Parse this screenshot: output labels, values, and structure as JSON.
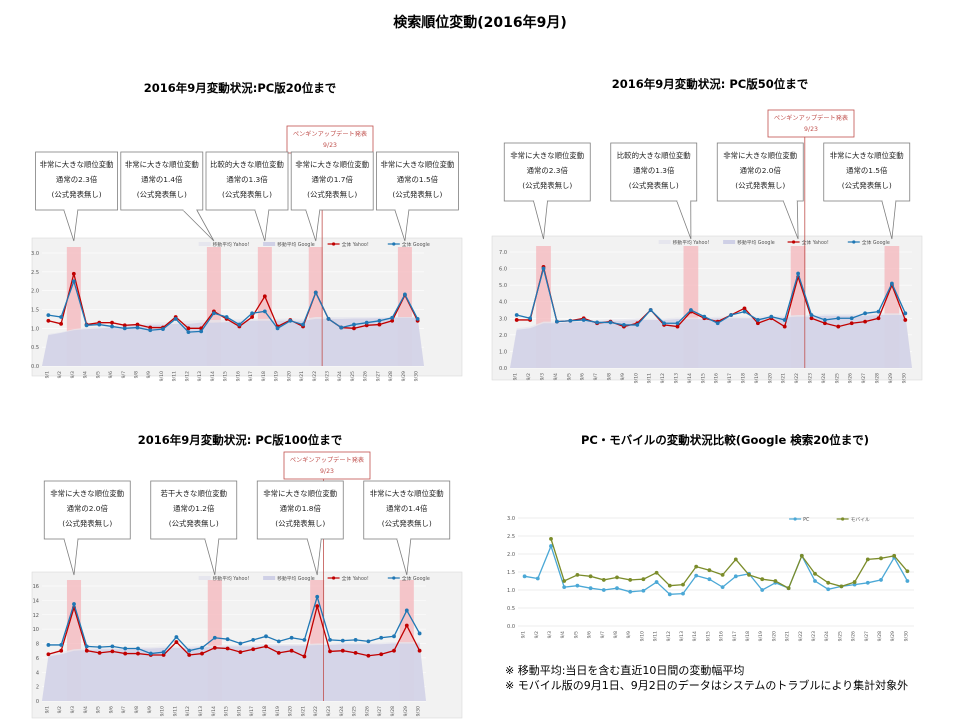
{
  "page": {
    "title": "検索順位変動(2016年9月)"
  },
  "notes": [
    "※ 移動平均:当日を含む直近10日間の変動幅平均",
    "※ モバイル版の9月1日、9月2日のデータはシステムのトラブルにより集計対象外"
  ],
  "colors": {
    "yahoo": "#c00000",
    "google": "#1f77b4",
    "band": "#f4b6bb",
    "ma_yahoo": "#e6e6ee",
    "ma_google": "#cfd0e6",
    "pc": "#4ba8d6",
    "mobile": "#7b8c2a",
    "callout_border": "#7f7f7f",
    "penguin_border": "#c0504d",
    "penguin_text": "#c0504d"
  },
  "chart_data": [
    {
      "type": "line",
      "title": "2016年9月変動状況:PC版20位まで",
      "categories": [
        "9/1",
        "9/2",
        "9/3",
        "9/4",
        "9/5",
        "9/6",
        "9/7",
        "9/8",
        "9/9",
        "9/10",
        "9/11",
        "9/12",
        "9/13",
        "9/14",
        "9/15",
        "9/16",
        "9/17",
        "9/18",
        "9/19",
        "9/20",
        "9/21",
        "9/22",
        "9/23",
        "9/24",
        "9/25",
        "9/26",
        "9/27",
        "9/28",
        "9/29",
        "9/30"
      ],
      "ylim": [
        0,
        3.0
      ],
      "yticks": [
        "0.0",
        "0.5",
        "1.0",
        "1.5",
        "2.0",
        "2.5",
        "3.0"
      ],
      "highlights": [
        "9/3",
        "9/14",
        "9/18",
        "9/22",
        "9/29"
      ],
      "penguin": {
        "label": "ペンギンアップデート発表",
        "date": "9/23",
        "after": "9/22"
      },
      "legend": [
        "移動平均 Yahoo!",
        "移動平均 Google",
        "全体 Yahoo!",
        "全体 Google"
      ],
      "series": [
        {
          "name": "移動平均 Yahoo!",
          "kind": "area",
          "values": [
            0.85,
            0.9,
            0.98,
            1.02,
            1.05,
            1.08,
            1.1,
            1.12,
            1.15,
            1.16,
            1.18,
            1.2,
            1.22,
            1.22,
            1.23,
            1.24,
            1.25,
            1.25,
            1.25,
            1.26,
            1.25,
            1.3,
            1.3,
            1.3,
            1.3,
            1.3,
            1.3,
            1.3,
            1.3,
            1.3
          ]
        },
        {
          "name": "移動平均 Google",
          "kind": "area",
          "values": [
            0.82,
            0.88,
            0.95,
            0.98,
            1.0,
            1.02,
            1.05,
            1.08,
            1.1,
            1.1,
            1.12,
            1.12,
            1.15,
            1.15,
            1.16,
            1.18,
            1.2,
            1.2,
            1.2,
            1.2,
            1.2,
            1.25,
            1.25,
            1.25,
            1.26,
            1.26,
            1.27,
            1.28,
            1.28,
            1.28
          ]
        },
        {
          "name": "全体 Yahoo!",
          "kind": "line",
          "values": [
            1.2,
            1.12,
            2.45,
            1.1,
            1.15,
            1.15,
            1.08,
            1.1,
            1.02,
            1.02,
            1.3,
            1.0,
            1.0,
            1.45,
            1.25,
            1.05,
            1.3,
            1.85,
            1.05,
            1.22,
            1.05,
            1.95,
            1.25,
            1.02,
            1.0,
            1.08,
            1.1,
            1.2,
            1.88,
            1.2
          ]
        },
        {
          "name": "全体 Google",
          "kind": "line",
          "values": [
            1.35,
            1.3,
            2.25,
            1.08,
            1.1,
            1.05,
            1.0,
            1.02,
            0.95,
            0.98,
            1.25,
            0.9,
            0.92,
            1.4,
            1.3,
            1.1,
            1.4,
            1.45,
            1.0,
            1.2,
            1.1,
            1.95,
            1.25,
            1.02,
            1.1,
            1.15,
            1.2,
            1.28,
            1.9,
            1.25
          ]
        }
      ],
      "callouts": [
        {
          "lines": [
            "非常に大きな順位変動",
            "通常の2.3倍",
            "(公式発表無し)"
          ],
          "target": "9/3"
        },
        {
          "lines": [
            "非常に大きな順位変動",
            "通常の1.4倍",
            "(公式発表無し)"
          ],
          "target": "9/14"
        },
        {
          "lines": [
            "比較的大きな順位変動",
            "通常の1.3倍",
            "(公式発表無し)"
          ],
          "target": "9/18"
        },
        {
          "lines": [
            "非常に大きな順位変動",
            "通常の1.7倍",
            "(公式発表無し)"
          ],
          "target": "9/22"
        },
        {
          "lines": [
            "非常に大きな順位変動",
            "通常の1.5倍",
            "(公式発表無し)"
          ],
          "target": "9/29"
        }
      ]
    },
    {
      "type": "line",
      "title": "2016年9月変動状況: PC版50位まで",
      "categories": [
        "9/1",
        "9/2",
        "9/3",
        "9/4",
        "9/5",
        "9/6",
        "9/7",
        "9/8",
        "9/9",
        "9/10",
        "9/11",
        "9/12",
        "9/13",
        "9/14",
        "9/15",
        "9/16",
        "9/17",
        "9/18",
        "9/19",
        "9/20",
        "9/21",
        "9/22",
        "9/23",
        "9/24",
        "9/25",
        "9/26",
        "9/27",
        "9/28",
        "9/29",
        "9/30"
      ],
      "ylim": [
        0,
        7.0
      ],
      "yticks": [
        "0.0",
        "1.0",
        "2.0",
        "3.0",
        "4.0",
        "5.0",
        "6.0",
        "7.0"
      ],
      "highlights": [
        "9/3",
        "9/14",
        "9/22",
        "9/29"
      ],
      "penguin": {
        "label": "ペンギンアップデート発表",
        "date": "9/23",
        "after": "9/22"
      },
      "legend": [
        "移動平均 Yahoo!",
        "移動平均 Google",
        "全体 Yahoo!",
        "全体 Google"
      ],
      "series": [
        {
          "name": "移動平均 Yahoo!",
          "kind": "area",
          "values": [
            2.4,
            2.5,
            2.8,
            2.8,
            2.85,
            2.9,
            2.9,
            2.95,
            2.95,
            3.0,
            3.0,
            3.0,
            3.05,
            3.05,
            3.05,
            3.1,
            3.1,
            3.1,
            3.1,
            3.15,
            3.15,
            3.2,
            3.2,
            3.25,
            3.25,
            3.25,
            3.25,
            3.3,
            3.3,
            3.3
          ]
        },
        {
          "name": "移動平均 Google",
          "kind": "area",
          "values": [
            2.3,
            2.4,
            2.7,
            2.7,
            2.75,
            2.8,
            2.8,
            2.85,
            2.85,
            2.9,
            2.9,
            2.9,
            2.95,
            2.95,
            2.95,
            3.0,
            3.0,
            3.0,
            3.0,
            3.05,
            3.05,
            3.1,
            3.1,
            3.15,
            3.15,
            3.15,
            3.15,
            3.2,
            3.2,
            3.2
          ]
        },
        {
          "name": "全体 Yahoo!",
          "kind": "line",
          "values": [
            2.9,
            2.9,
            6.1,
            2.8,
            2.85,
            3.0,
            2.7,
            2.8,
            2.5,
            2.7,
            3.5,
            2.6,
            2.5,
            3.4,
            3.0,
            2.8,
            3.2,
            3.6,
            2.7,
            3.0,
            2.5,
            5.5,
            3.0,
            2.7,
            2.5,
            2.7,
            2.8,
            3.0,
            5.0,
            2.9
          ]
        },
        {
          "name": "全体 Google",
          "kind": "line",
          "values": [
            3.2,
            3.0,
            6.0,
            2.8,
            2.85,
            2.9,
            2.75,
            2.75,
            2.6,
            2.6,
            3.5,
            2.7,
            2.7,
            3.5,
            3.1,
            2.7,
            3.2,
            3.4,
            2.9,
            3.1,
            2.9,
            5.7,
            3.2,
            2.9,
            3.0,
            3.0,
            3.3,
            3.4,
            5.1,
            3.3
          ]
        }
      ],
      "callouts": [
        {
          "lines": [
            "非常に大きな順位変動",
            "通常の2.3倍",
            "(公式発表無し)"
          ],
          "target": "9/3"
        },
        {
          "lines": [
            "比較的大きな順位変動",
            "通常の1.3倍",
            "(公式発表無し)"
          ],
          "target": "9/14"
        },
        {
          "lines": [
            "非常に大きな順位変動",
            "通常の2.0倍",
            "(公式発表無し)"
          ],
          "target": "9/22"
        },
        {
          "lines": [
            "非常に大きな順位変動",
            "通常の1.5倍",
            "(公式発表無し)"
          ],
          "target": "9/29"
        }
      ]
    },
    {
      "type": "line",
      "title": "2016年9月変動状況: PC版100位まで",
      "categories": [
        "9/1",
        "9/2",
        "9/3",
        "9/4",
        "9/5",
        "9/6",
        "9/7",
        "9/8",
        "9/9",
        "9/10",
        "9/11",
        "9/12",
        "9/13",
        "9/14",
        "9/15",
        "9/16",
        "9/17",
        "9/18",
        "9/19",
        "9/20",
        "9/21",
        "9/22",
        "9/23",
        "9/24",
        "9/25",
        "9/26",
        "9/27",
        "9/28",
        "9/29",
        "9/30"
      ],
      "ylim": [
        0,
        16
      ],
      "yticks": [
        "0",
        "2",
        "4",
        "6",
        "8",
        "10",
        "12",
        "14",
        "16"
      ],
      "highlights": [
        "9/3",
        "9/14",
        "9/22",
        "9/29"
      ],
      "penguin": {
        "label": "ペンギンアップデート発表",
        "date": "9/23",
        "after": "9/22"
      },
      "legend": [
        "移動平均 Yahoo!",
        "移動平均 Google",
        "全体 Yahoo!",
        "全体 Google"
      ],
      "series": [
        {
          "name": "移動平均 Yahoo!",
          "kind": "area",
          "values": [
            6.5,
            6.8,
            7.2,
            7.3,
            7.4,
            7.4,
            7.4,
            7.5,
            7.5,
            7.6,
            7.6,
            7.6,
            7.7,
            7.7,
            7.8,
            7.8,
            7.8,
            7.9,
            7.9,
            7.9,
            7.9,
            8.0,
            8.0,
            8.1,
            8.1,
            8.1,
            8.1,
            8.2,
            8.2,
            8.2
          ]
        },
        {
          "name": "移動平均 Google",
          "kind": "area",
          "values": [
            6.2,
            6.5,
            7.0,
            7.1,
            7.2,
            7.2,
            7.2,
            7.3,
            7.3,
            7.4,
            7.4,
            7.4,
            7.5,
            7.5,
            7.6,
            7.6,
            7.6,
            7.7,
            7.7,
            7.7,
            7.7,
            7.8,
            7.8,
            7.9,
            7.9,
            7.9,
            7.9,
            8.0,
            8.0,
            8.0
          ]
        },
        {
          "name": "全体 Yahoo!",
          "kind": "line",
          "values": [
            6.5,
            7.0,
            13.0,
            7.0,
            6.7,
            6.9,
            6.6,
            6.6,
            6.4,
            6.4,
            8.2,
            6.4,
            6.6,
            7.4,
            7.3,
            6.8,
            7.2,
            7.6,
            6.7,
            7.0,
            6.2,
            13.2,
            6.9,
            7.0,
            6.7,
            6.3,
            6.5,
            7.0,
            10.5,
            7.0
          ]
        },
        {
          "name": "全体 Google",
          "kind": "line",
          "values": [
            7.8,
            7.8,
            13.5,
            7.6,
            7.5,
            7.6,
            7.3,
            7.3,
            6.6,
            6.8,
            8.9,
            7.0,
            7.4,
            8.8,
            8.6,
            8.0,
            8.5,
            9.0,
            8.3,
            8.8,
            8.5,
            14.5,
            8.5,
            8.4,
            8.5,
            8.3,
            8.8,
            9.0,
            12.6,
            9.4
          ]
        }
      ],
      "callouts": [
        {
          "lines": [
            "非常に大きな順位変動",
            "通常の2.0倍",
            "(公式発表無し)"
          ],
          "target": "9/3"
        },
        {
          "lines": [
            "若干大きな順位変動",
            "通常の1.2倍",
            "(公式発表無し)"
          ],
          "target": "9/14"
        },
        {
          "lines": [
            "非常に大きな順位変動",
            "通常の1.8倍",
            "(公式発表無し)"
          ],
          "target": "9/22"
        },
        {
          "lines": [
            "非常に大きな順位変動",
            "通常の1.4倍",
            "(公式発表無し)"
          ],
          "target": "9/29"
        }
      ]
    },
    {
      "type": "line",
      "title": "PC・モバイルの変動状況比較(Google 検索20位まで)",
      "categories": [
        "9/1",
        "9/2",
        "9/3",
        "9/4",
        "9/5",
        "9/6",
        "9/7",
        "9/8",
        "9/9",
        "9/10",
        "9/11",
        "9/12",
        "9/13",
        "9/14",
        "9/15",
        "9/16",
        "9/17",
        "9/18",
        "9/19",
        "9/20",
        "9/21",
        "9/22",
        "9/23",
        "9/24",
        "9/25",
        "9/26",
        "9/27",
        "9/28",
        "9/29",
        "9/30"
      ],
      "ylim": [
        0,
        3.0
      ],
      "yticks": [
        "0.0",
        "0.5",
        "1.0",
        "1.5",
        "2.0",
        "2.5",
        "3.0"
      ],
      "legend": [
        "PC",
        "モバイル"
      ],
      "series": [
        {
          "name": "PC",
          "kind": "line",
          "values": [
            1.38,
            1.32,
            2.22,
            1.08,
            1.12,
            1.05,
            1.0,
            1.05,
            0.95,
            0.98,
            1.22,
            0.88,
            0.9,
            1.4,
            1.3,
            1.08,
            1.38,
            1.45,
            1.0,
            1.2,
            1.05,
            1.95,
            1.25,
            1.02,
            1.1,
            1.15,
            1.2,
            1.28,
            1.9,
            1.25
          ]
        },
        {
          "name": "モバイル",
          "kind": "line",
          "values": [
            null,
            null,
            2.42,
            1.25,
            1.42,
            1.38,
            1.28,
            1.35,
            1.28,
            1.3,
            1.48,
            1.12,
            1.15,
            1.65,
            1.55,
            1.42,
            1.85,
            1.42,
            1.3,
            1.25,
            1.05,
            1.95,
            1.45,
            1.2,
            1.1,
            1.22,
            1.85,
            1.88,
            1.95,
            1.52
          ]
        }
      ]
    }
  ]
}
